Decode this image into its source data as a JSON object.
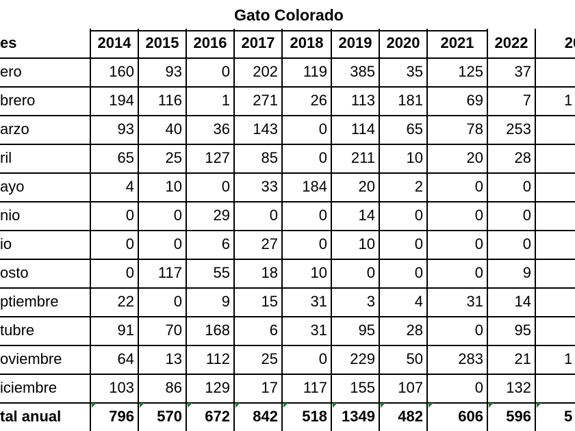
{
  "title": "Gato Colorado",
  "header": [
    "es",
    "2014",
    "2015",
    "2016",
    "2017",
    "2018",
    "2019",
    "2020",
    "2021",
    "2022",
    "20"
  ],
  "rows": [
    [
      "ero",
      160,
      93,
      0,
      202,
      119,
      385,
      35,
      125,
      37,
      null
    ],
    [
      "brero",
      194,
      116,
      1,
      271,
      26,
      113,
      181,
      69,
      7,
      "1"
    ],
    [
      "arzo",
      93,
      40,
      36,
      143,
      0,
      114,
      65,
      78,
      253,
      null
    ],
    [
      "ril",
      65,
      25,
      127,
      85,
      0,
      211,
      10,
      20,
      28,
      null
    ],
    [
      "ayo",
      4,
      10,
      0,
      33,
      184,
      20,
      2,
      0,
      0,
      null
    ],
    [
      "nio",
      0,
      0,
      29,
      0,
      0,
      14,
      0,
      0,
      0,
      null
    ],
    [
      "io",
      0,
      0,
      6,
      27,
      0,
      10,
      0,
      0,
      0,
      null
    ],
    [
      "osto",
      0,
      117,
      55,
      18,
      10,
      0,
      0,
      0,
      9,
      null
    ],
    [
      "ptiembre",
      22,
      0,
      9,
      15,
      31,
      3,
      4,
      31,
      14,
      null
    ],
    [
      "tubre",
      91,
      70,
      168,
      6,
      31,
      95,
      28,
      0,
      95,
      null
    ],
    [
      "oviembre",
      64,
      13,
      112,
      25,
      0,
      229,
      50,
      283,
      21,
      "1"
    ],
    [
      "iciembre",
      103,
      86,
      129,
      17,
      117,
      155,
      107,
      0,
      132,
      null
    ],
    [
      "tal anual",
      796,
      570,
      672,
      842,
      518,
      1349,
      482,
      606,
      596,
      "5"
    ]
  ]
}
